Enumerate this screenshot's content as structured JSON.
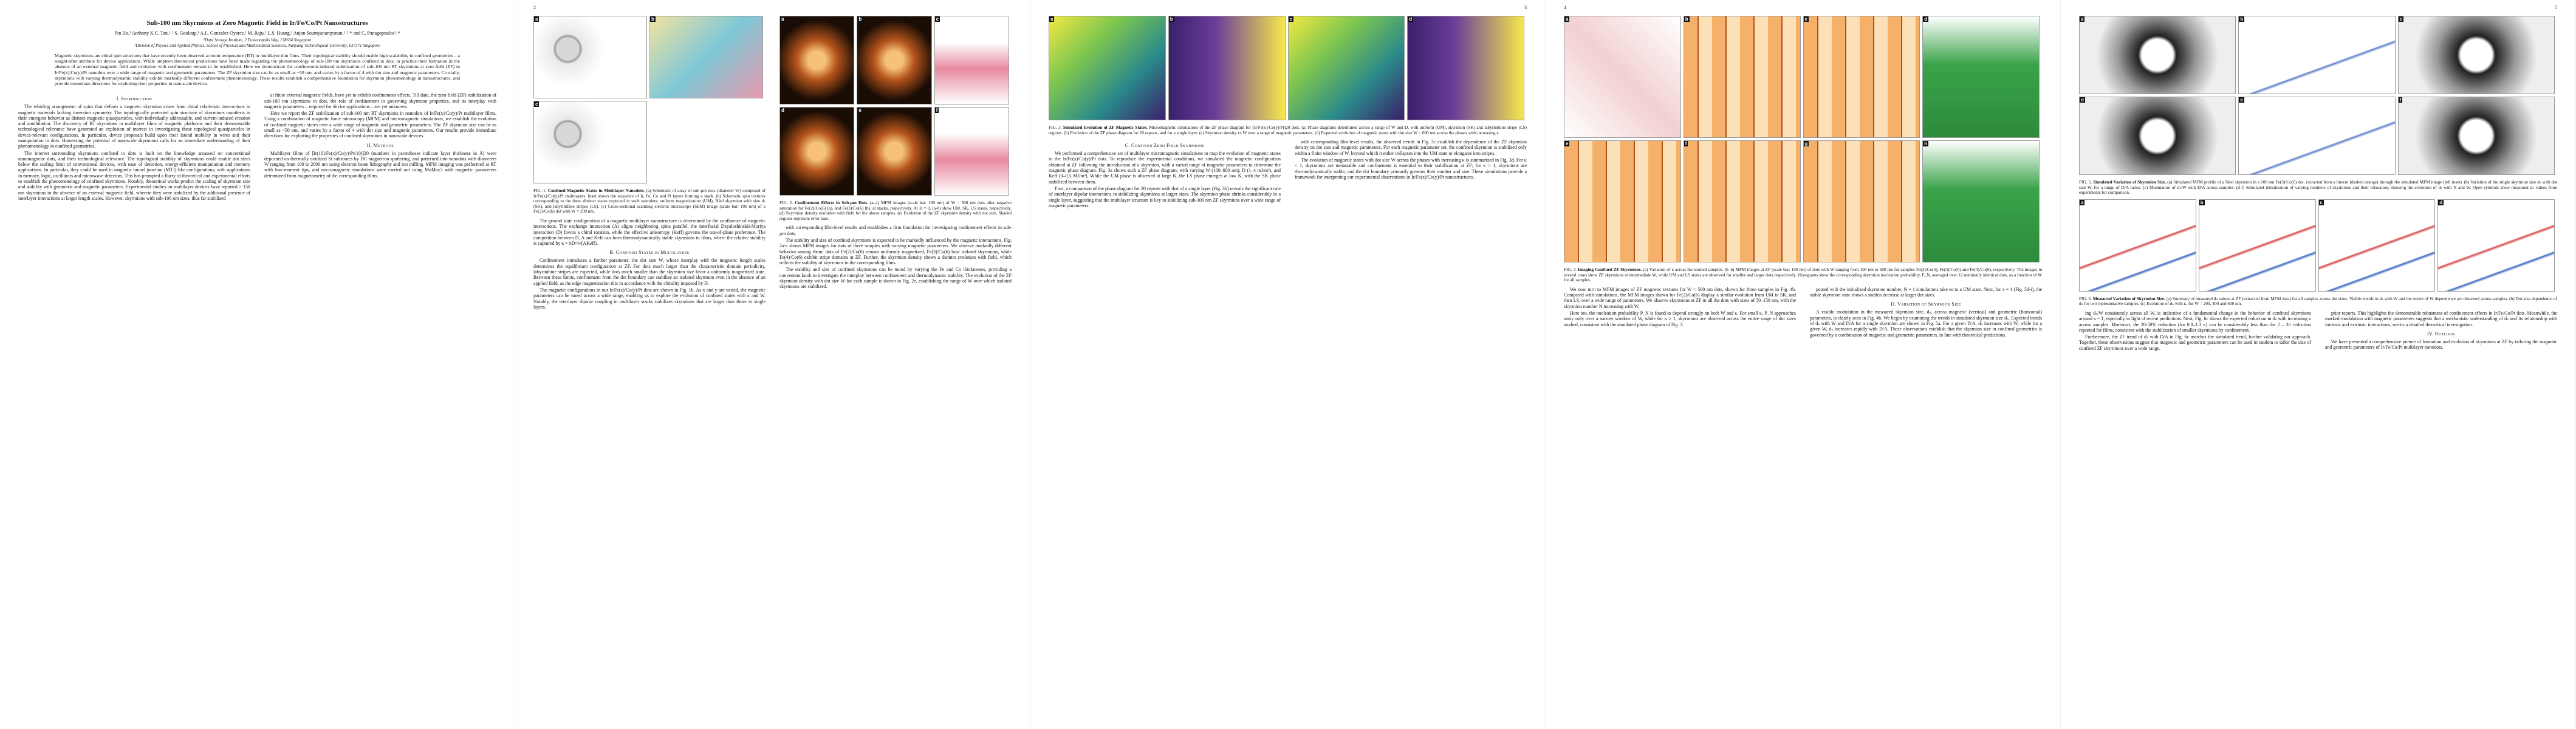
{
  "arxiv_stamp": "arXiv:1709.04878v1  [cond-mat.mes-hall]  14 Sep 2017",
  "pages": [
    {
      "title": "Sub-100 nm Skyrmions at Zero Magnetic Field in Ir/Fe/Co/Pt Nanostructures",
      "authors": "Pin Ho,¹ Anthony K.C. Tan,¹˒² S. Goolaup,¹ A.L. Gonzalez Oyarce,¹ M. Raju,² L.S. Huang,¹ Anjan Soumyanarayanan,¹˒²˒* and C. Panagopoulos²˒*",
      "affiliations": [
        "¹Data Storage Institute, 2 Fusionopolis Way, 138634 Singapore",
        "²Division of Physics and Applied Physics, School of Physical and Mathematical Sciences, Nanyang Technological University, 637371 Singapore"
      ],
      "abstract": "Magnetic skyrmions are chiral spin structures that have recently been observed at room temperature (RT) in multilayer thin films. Their topological stability should enable high scalability in confined geometries – a sought-after attribute for device applications. While umpteen theoretical predictions have been made regarding the phenomenology of sub-100 nm skyrmions confined in dots, in practice their formation in the absence of an external magnetic field and evolution with confinement remain to be established. Here we demonstrate the confinement-induced stabilization of sub-100 nm RT skyrmions at zero field (ZF) in Ir/Fe(x)/Co(y)/Pt nanodots over a wide range of magnetic and geometric parameters. The ZF skyrmion size can be as small as ~50 nm, and varies by a factor of 4 with dot size and magnetic parameters. Crucially, skyrmions with varying thermodynamic stability exhibit markedly different confinement phenomenology. These results establish a comprehensive foundation for skyrmion phenomenology in nanostructures, and provide immediate directions for exploiting their properties in nanoscale devices.",
      "figures": [],
      "columns": [
        [
          {
            "heading": "I. Introduction"
          },
          {
            "text": "The whirling arrangement of spins that defines a magnetic skyrmion arises from chiral relativistic interactions in magnetic materials lacking inversion symmetry. The topologically protected spin structure of skyrmions manifests in their emergent behavior as distinct magnetic quasiparticles, with individually addressable, and current-induced creation and annihilation. The discovery of RT skyrmions in multilayer films of magnetic platforms and their demonstrable technological relevance have generated an explosion of interest in investigating these topological quasiparticles in device-relevant configurations. In particular, device proposals build upon their lateral mobility in wires and their manipulation in dots. Harnessing the potential of nanoscale skyrmions calls for an immediate understanding of their phenomenology in confined geometries."
          },
          {
            "text": "The interest surrounding skyrmions confined in dots is built on the knowledge amassed on conventional nanomagnetic dots, and their technological relevance. The topological stability of skyrmions could enable dot sizes below the scaling limit of conventional devices, with ease of detection, energy-efficient manipulation and memory applications. In particular, they could be used in magnetic tunnel junction (MTJ)-like configurations, with applications in memory, logic, oscillators and microwave detectors. This has prompted a flurry of theoretical and experimental efforts to establish the phenomenology of confined skyrmions. Notably, theoretical works predict the scaling of skyrmion size and stability with geometric and magnetic parameters. Experimental studies on multilayer devices have reported > 150 nm skyrmions in the absence of an external magnetic field, wherein they were stabilized by the additional presence of interlayer interactions at larger length scales. However, skyrmions with sub-100 nm sizes, thus far stabilized"
          }
        ],
        [
          {
            "text": "at finite external magnetic fields, have yet to exhibit confinement effects. Till date, the zero field (ZF) stabilization of sub-100 nm skyrmions in dots, the role of confinement in governing skyrmion properties, and its interplay with magnetic parameters – required for device applications – are yet unknown."
          },
          {
            "text": "Here we report the ZF stabilization of sub-100 nm RT skyrmions in nanodots of Ir/Fe(x)/Co(y)/Pt multilayer films. Using a combination of magnetic force microscopy (MFM) and micromagnetic simulations, we establish the evolution of confined magnetic states over a wide range of magnetic and geometric parameters. The ZF skyrmion size can be as small as ~50 nm, and varies by a factor of 4 with dot size and magnetic parameters. Our results provide immediate directions for exploiting the properties of confined skyrmions in nanoscale devices."
          },
          {
            "heading": "II. Methods"
          },
          {
            "text": "Multilayer films of [Ir(10)/Fe(x)/Co(y)/Pt(10)]20 (numbers in parentheses indicate layer thickness in Å) were deposited on thermally oxidized Si substrates by DC magnetron sputtering, and patterned into nanodots with diameters W ranging from 100 to 2000 nm using electron beam lithography and ion milling. MFM imaging was performed at RT with low-moment tips, and micromagnetic simulations were carried out using MuMax3 with magnetic parameters determined from magnetometry of the corresponding films."
          }
        ]
      ]
    },
    {
      "number": 2,
      "figures": [
        {
          "span": "left",
          "panels": [
            "a",
            "b",
            "c"
          ],
          "caption_label": "FIG. 1.",
          "caption_title": "Confined Magnetic States in Multilayer Nanodots.",
          "caption": "(a) Schematic of array of sub-μm dots (diameter W) composed of Ir/Fe(x)/Co(y)/Pt multilayers. Inset shows the sequence of Ir, Fe, Co and Pt layers forming a stack. (b) Schematic spin textures corresponding to the three distinct states expected in such nanodots: uniform magnetization (UM), Néel skyrmion with size dₛ (SK), and labyrinthine stripes (LS). (c) Cross-sectional scanning electron microscope (SEM) image (scale bar: 100 nm) of a Fe(2)/Co(6) dot with W = 200 nm."
        },
        {
          "span": "right",
          "panels": [
            "a",
            "b",
            "c",
            "d",
            "e",
            "f"
          ],
          "caption_label": "FIG. 2.",
          "caption_title": "Confinement Effects in Sub-μm Dots.",
          "caption": "(a–c) MFM images (scale bar: 100 nm) of W = 500 nm dots after negative saturation for Fe(2)/Co(6) (a), and Fe(3)/Co(6) (b), at stacks, respectively. At H = 0, (a-b) show UM, SK, LS states, respectively. (d) Skyrmion density evolution with field for the above samples. (e) Evolution of the ZF skyrmion density with dot size. Shaded regions represent error bars."
        }
      ],
      "columns": [
        [
          {
            "text": "The ground state configuration of a magnetic multilayer nanostructure is determined by the confluence of magnetic interactions. The exchange interaction (A) aligns neighboring spins parallel, the interfacial Dzyaloshinskii-Moriya interaction (D) favors a chiral rotation, while the effective anisotropy (Keff) governs the out-of-plane preference. The competition between D, A and Keff can form thermodynamically stable skyrmions in films, where the relative stability is captured by κ = πD/4√(AKeff)."
          },
          {
            "heading": "B. Confined States in Multilayers"
          },
          {
            "text": "Confinement introduces a further parameter, the dot size W, whose interplay with the magnetic length scales determines the equilibrium configuration at ZF. For dots much larger than the characteristic domain periodicity, labyrinthine stripes are expected, while dots much smaller than the skyrmion size favor a uniformly magnetized state. Between these limits, confinement from the dot boundary can stabilize an isolated skyrmion even in the absence of an applied field, as the edge magnetization tilts in accordance with the chirality imposed by D."
          },
          {
            "text": "The magnetic configurations in our Ir/Fe(x)/Co(y)/Pt dots are shown in Fig. 1b. As x and y are varied, the magnetic parameters can be tuned across a wide range, enabling us to explore the evolution of confined states with κ and W. Notably, the interlayer dipolar coupling in multilayer stacks stabilizes skyrmions that are larger than those in single layers."
          }
        ],
        [
          {
            "text": "with corresponding film-level results and establishes a firm foundation for investigating confinement effects in sub-μm dots."
          },
          {
            "text": "The stability and size of confined skyrmions is expected to be markedly influenced by the magnetic interactions. Fig. 2a-c shows MFM images for dots of three samples with varying magnetic parameters. We observe markedly different behavior among them: dots of Fe(2)/Co(6) remain uniformly magnetized, Fe(3)/Co(6) host isolated skyrmions, while Fe(4)/Co(6) exhibit stripe domains at ZF. Further, the skyrmion density shows a distinct evolution with field, which reflects the stability of skyrmions in the corresponding films."
          },
          {
            "text": "The stability and size of confined skyrmions can be tuned by varying the Fe and Co thicknesses, providing a convenient knob to investigate the interplay between confinement and thermodynamic stability. The evolution of the ZF skyrmion density with dot size W for each sample is shown in Fig. 2e, establishing the range of W over which isolated skyrmions are stabilized."
          }
        ]
      ]
    },
    {
      "number": 3,
      "figures": [
        {
          "span": "full",
          "panels": [
            "a",
            "b",
            "c",
            "d"
          ],
          "caption_label": "FIG. 3.",
          "caption_title": "Simulated Evolution of ZF Magnetic States.",
          "caption": "Micromagnetic simulations of the ZF phase diagram for [Ir/Fe(x)/Co(y)/Pt]20 dots. (a) Phase diagrams determined across a range of W and D, with uniform (UM), skyrmion (SK) and labyrinthine stripe (LS) regions. (b) Evolution of the ZF phase diagram for 20 repeats, and for a single layer. (c) Skyrmion density vs W over a range of magnetic parameters. (d) Expected evolution of magnetic states with dot size W = 600 nm across the phases with increasing κ."
        }
      ],
      "columns": [
        [
          {
            "heading": "C. Confined Zero Field Skyrmions"
          },
          {
            "text": "We performed a comprehensive set of multilayer micromagnetic simulations to map the evolution of magnetic states in the Ir/Fe(x)/Co(y)/Pt dots. To reproduce the experimental conditions, we simulated the magnetic configuration obtained at ZF following the introduction of a skyrmion, with a varied range of magnetic parameters to determine the magnetic phase diagram. Fig. 3a shows such a ZF phase diagram, with varying W (100–600 nm), D (1–4 mJ/m²), and Keff (0–0.5 MJ/m³). While the UM phase is observed at large K, the LS phase emerges at low K, with the SK phase stabilized between them."
          },
          {
            "text": "First, a comparison of the phase diagram for 20 repeats with that of a single layer (Fig. 3b) reveals the significant role of interlayer dipolar interactions in stabilizing skyrmions at larger sizes. The skyrmion phase shrinks considerably in a single layer, suggesting that the multilayer structure is key to stabilizing sub-100 nm ZF skyrmions over a wide range of magnetic parameters."
          }
        ],
        [
          {
            "text": "with corresponding film-level results, the observed trends in Fig. 3c establish the dependence of the ZF skyrmion density on dot size and magnetic parameters. For each magnetic parameter set, the confined skyrmion is stabilized only within a finite window of W, beyond which it either collapses into the UM state or elongates into stripes."
          },
          {
            "text": "The evolution of magnetic states with dot size W across the phases with increasing κ is summarized in Fig. 3d. For κ < 1, skyrmions are metastable and confinement is essential to their stabilization at ZF; for κ > 1, skyrmions are thermodynamically stable, and the dot boundary primarily governs their number and size. These simulations provide a framework for interpreting our experimental observations in Ir/Fe(x)/Co(y)/Pt nanostructures."
          }
        ]
      ]
    },
    {
      "number": 4,
      "figures": [
        {
          "span": "full",
          "panels": [
            "a",
            "b",
            "c",
            "d",
            "e",
            "f",
            "g",
            "h"
          ],
          "caption_label": "FIG. 4.",
          "caption_title": "Imaging Confined ZF Skyrmions.",
          "caption": "(a) Variation of κ across the studied samples. (b–h) MFM images at ZF (scale bar: 100 nm) of dots with W ranging from 100 nm to 600 nm for samples Fe(2)/Co(6), Fe(3)/Co(6) and Fe(4)/Co(6), respectively. The images in several cases show ZF skyrmions at intermediate W, while UM and LS states are observed for smaller and larger dots respectively. Histograms show the corresponding skyrmion nucleation probability, P_N, averaged over 12 nominally identical dots, as a function of W for all samples."
        }
      ],
      "columns": [
        [
          {
            "text": "We now turn to MFM images of ZF magnetic textures for W < 500 nm dots, shown for three samples in Fig. 4b. Compared with simulations, the MFM images shown for Fe(2)/Co(6) display a similar evolution from UM to SK, and then LS, over a wide range of parameters. We observe skyrmions at ZF in all the dots with sizes of 50–150 nm, with the skyrmion number N increasing with W."
          },
          {
            "text": "Here too, the nucleation probability P_N is found to depend strongly on both W and κ. For small κ, P_N approaches unity only over a narrow window of W, while for κ ≥ 1, skyrmions are observed across the entire range of dot sizes studied, consistent with the simulated phase diagram of Fig. 3."
          }
        ],
        [
          {
            "text": "peated with the initialized skyrmion number, N = 1 simulations take us to a UM state. Next, for x = 1 (Fig. 5d-i), the stable skyrmion state shows a sudden decrease at larger dot sizes."
          },
          {
            "heading": "D. Variation of Skyrmion Size"
          },
          {
            "text": "A visible modulation in the measured skyrmion size, dₛ, across magnetic (vertical) and geometric (horizontal) parameters, is clearly seen in Fig. 4b. We begin by examining the trends in simulated skyrmion size dₛ. Expected trends of dₛ with W and D/A for a single skyrmion are shown in Fig. 5a. For a given D/A, dₛ increases with W, while for a given W, dₛ increases rapidly with D/A. These observations establish that the skyrmion size in confined geometries is governed by a combination of magnetic and geometric parameters, in line with theoretical predictions."
          }
        ]
      ]
    },
    {
      "number": 5,
      "figures": [
        {
          "span": "full",
          "panels": [
            "a",
            "b",
            "c",
            "d",
            "e",
            "f"
          ],
          "caption_label": "FIG. 5.",
          "caption_title": "Simulated Variation of Skyrmion Size.",
          "caption": "(a) Simulated MFM profile of a Néel skyrmion in a 100 nm Fe(3)/Co(6) dot, extracted from a linecut (dashed orange) through the simulated MFM image (left inset). (b) Variation of the single skyrmion size dₛ with dot size W, for a range of D/A ratios. (c) Modulation of dₛ/W with D/A across samples. (d-f) Simulated initialization of varying numbers of skyrmions and their relaxation, showing the evolution of dₛ with N and W. Open symbols show measured dₛ values from experiments for comparison."
        },
        {
          "span": "full",
          "panels": [
            "a",
            "b",
            "c",
            "d"
          ],
          "caption_label": "FIG. 6.",
          "caption_title": "Measured Variation of Skyrmion Size.",
          "caption": "(a) Summary of measured dₛ values at ZF (extracted from MFM data) for all samples across dot sizes. Visible trends in dₛ with W and the extent of W dependence are observed across samples. (b) Dot size dependence of dₛ for two representative samples. (c) Evolution of dₛ with κ, for W = 200, 400 and 600 nm."
        }
      ],
      "columns": [
        [
          {
            "text": "ing dₛ/W consistently across all W, is indicative of a fundamental change in the behavior of confined skyrmions around κ ~ 1, especially in light of recent predictions. Next, Fig. 6c shows the expected reduction in dₛ with increasing κ across samples. Moreover, the 20-50% reduction (for 0.8–1.3 κ) can be considerably less than the 2 – 3× reduction reported for films, consistent with the stabilization of smaller skyrmions by confinement."
          },
          {
            "text": "Furthermore, the ZF trend of dₛ with D/A in Fig. 6c matches the simulated trend, further validating our approach. Together, these observations suggest that magnetic and geometric parameters can be used in tandem to tailor the size of confined ZF skyrmions over a wide range."
          }
        ],
        [
          {
            "text": "prior reports. This highlights the demonstrable robustness of confinement effects in Ir/Fe/Co/Pt dots. Meanwhile, the marked modulation with magnetic parameters suggests that a mechanistic understanding of dₛ and its relationship with intrinsic and extrinsic interactions, merits a detailed theoretical investigation."
          },
          {
            "heading": "IV. Outlook"
          },
          {
            "text": "We have presented a comprehensive picture of formation and evolution of skyrmions at ZF by tailoring the magnetic and geometric parameters of Ir/Fe/Co/Pt multilayer nanodots."
          }
        ]
      ]
    }
  ]
}
